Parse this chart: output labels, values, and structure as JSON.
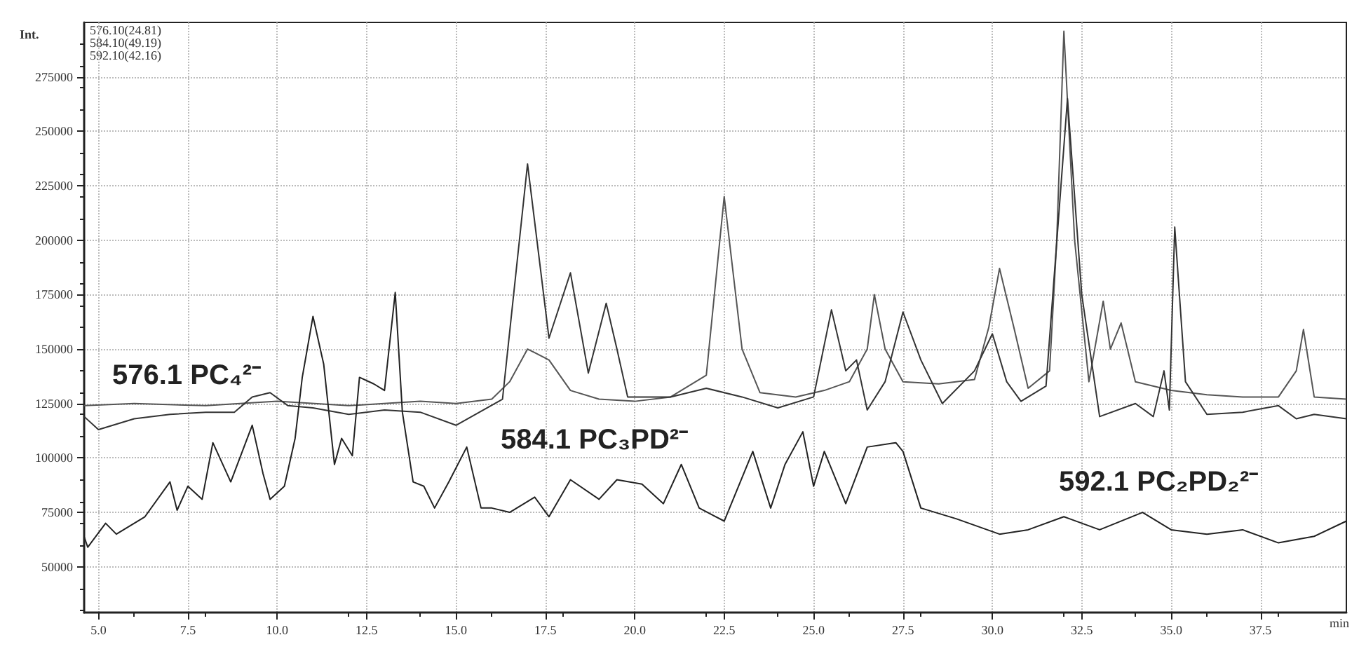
{
  "chart_data": {
    "type": "line",
    "xlabel": "min",
    "ylabel": "Int.",
    "xlim": [
      4.6,
      39.9
    ],
    "ylim": [
      29000,
      300000
    ],
    "xticks": [
      {
        "value": 5,
        "label": "5.0"
      },
      {
        "value": 7.5,
        "label": "7.5"
      },
      {
        "value": 10,
        "label": "10.0"
      },
      {
        "value": 12.5,
        "label": "12.5"
      },
      {
        "value": 15,
        "label": "15.0"
      },
      {
        "value": 17.5,
        "label": "17.5"
      },
      {
        "value": 20,
        "label": "20.0"
      },
      {
        "value": 22.5,
        "label": "22.5"
      },
      {
        "value": 25,
        "label": "25.0"
      },
      {
        "value": 27.5,
        "label": "27.5"
      },
      {
        "value": 30,
        "label": "30.0"
      },
      {
        "value": 32.5,
        "label": "32.5"
      },
      {
        "value": 35,
        "label": "35.0"
      },
      {
        "value": 37.5,
        "label": "37.5"
      }
    ],
    "yticks": [
      50000,
      75000,
      100000,
      125000,
      150000,
      175000,
      200000,
      225000,
      250000,
      275000
    ],
    "grid": true,
    "marker": "none",
    "line_style": "solid",
    "series": [
      {
        "color": "#555555",
        "x": [
          4.6,
          6,
          8,
          10,
          12,
          14,
          15,
          16,
          16.5,
          17,
          17.6,
          18.2,
          19,
          20,
          21,
          22,
          22.5,
          23,
          23.5,
          24.5,
          25.3,
          26,
          26.5,
          26.7,
          27,
          27.5,
          28.5,
          29.5,
          29.9,
          30.2,
          30.6,
          31,
          31.6,
          31.8,
          32,
          32.3,
          32.7,
          33.1,
          33.3,
          33.6,
          34,
          35,
          36,
          37,
          38,
          38.5,
          38.7,
          39,
          39.9
        ],
        "values": [
          124000,
          125000,
          124000,
          126000,
          124000,
          126000,
          125000,
          127000,
          135000,
          150000,
          145000,
          131000,
          127000,
          126000,
          128000,
          138000,
          220000,
          150000,
          130000,
          128000,
          131000,
          135000,
          150000,
          175000,
          150000,
          135000,
          134000,
          136000,
          160000,
          187000,
          160000,
          132000,
          140000,
          200000,
          296000,
          200000,
          135000,
          172000,
          150000,
          162000,
          135000,
          131000,
          129000,
          128000,
          128000,
          140000,
          159000,
          128000,
          127000
        ]
      },
      {
        "color": "#333333",
        "x": [
          4.6,
          5,
          6,
          7,
          8,
          8.8,
          9.3,
          9.8,
          10.3,
          11,
          12,
          13,
          14,
          15,
          16.3,
          17,
          17.6,
          18.2,
          18.7,
          19.2,
          19.5,
          19.8,
          21,
          22,
          23,
          24,
          25,
          25.5,
          25.9,
          26.2,
          26.5,
          27,
          27.5,
          28,
          28.6,
          29.5,
          30,
          30.4,
          30.8,
          31.5,
          32.1,
          32.5,
          33,
          34,
          34.5,
          34.8,
          34.95,
          35.1,
          35.4,
          36,
          37,
          38,
          38.5,
          39,
          39.9
        ],
        "values": [
          119000,
          113000,
          118000,
          120000,
          121000,
          121000,
          128000,
          130000,
          124000,
          123000,
          120000,
          122000,
          121000,
          115000,
          127000,
          235000,
          155000,
          185000,
          139000,
          171000,
          150000,
          128000,
          128000,
          132000,
          128000,
          123000,
          128000,
          168000,
          140000,
          145000,
          122000,
          135000,
          167000,
          145000,
          125000,
          140000,
          157000,
          135000,
          126000,
          133000,
          265000,
          175000,
          119000,
          125000,
          119000,
          140000,
          122000,
          206000,
          135000,
          120000,
          121000,
          124000,
          118000,
          120000,
          118000
        ]
      },
      {
        "color": "#222222",
        "x": [
          4.6,
          4.7,
          5.2,
          5.5,
          6.3,
          7,
          7.2,
          7.5,
          7.9,
          8.2,
          8.7,
          9.3,
          9.6,
          9.8,
          10.2,
          10.5,
          10.7,
          11,
          11.3,
          11.6,
          11.8,
          12.1,
          12.3,
          12.7,
          13,
          13.3,
          13.5,
          13.8,
          14.1,
          14.4,
          14.8,
          15.3,
          15.7,
          16,
          16.5,
          17.2,
          17.6,
          18.2,
          19,
          19.5,
          20.2,
          20.8,
          21.3,
          21.8,
          22.5,
          23.3,
          23.8,
          24.2,
          24.7,
          25,
          25.3,
          25.9,
          26.5,
          27.3,
          27.5,
          28,
          29,
          30.2,
          31,
          32,
          33,
          34.2,
          35,
          36,
          37,
          38,
          39,
          39.9
        ],
        "values": [
          63800,
          59000,
          70000,
          65000,
          73000,
          89000,
          76000,
          87000,
          81000,
          107000,
          89000,
          115000,
          93000,
          81000,
          87000,
          109000,
          137000,
          165000,
          143000,
          97000,
          109000,
          101000,
          137000,
          134000,
          131000,
          176000,
          121000,
          89000,
          87000,
          77000,
          89000,
          105000,
          77000,
          77000,
          75000,
          82000,
          73000,
          90000,
          81000,
          90000,
          88000,
          79000,
          97000,
          77000,
          71000,
          103000,
          77000,
          97000,
          112000,
          87000,
          103000,
          79000,
          105000,
          107000,
          103000,
          77000,
          72000,
          65000,
          67000,
          73000,
          67000,
          75000,
          67000,
          65000,
          67000,
          61000,
          64000,
          71000
        ]
      }
    ],
    "annotations": [
      "576.10(24.81)",
      "584.10(49.19)",
      "592.10(42.16)",
      "576.1 PC₄²⁻",
      "584.1 PC₃PD²⁻",
      "592.1 PC₂PD₂²⁻"
    ]
  }
}
